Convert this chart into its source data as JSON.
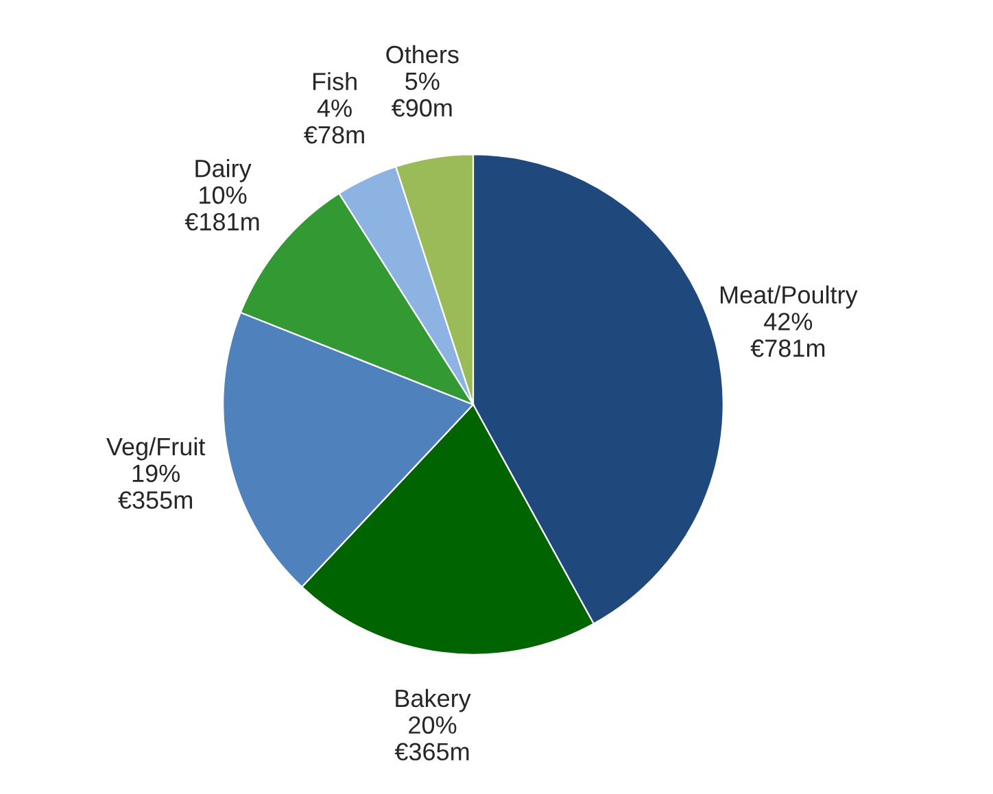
{
  "chart_data": {
    "type": "pie",
    "categories": [
      "Meat/Poultry",
      "Bakery",
      "Veg/Fruit",
      "Dairy",
      "Fish",
      "Others"
    ],
    "values": [
      42,
      20,
      19,
      10,
      4,
      5
    ],
    "value_labels": [
      "42%\n€781m",
      "20%\n€365m",
      "19%\n€355m",
      "10%\n€181m",
      "4%\n€78m",
      "5%\n€90m"
    ],
    "colors": [
      "#1f497d",
      "#006400",
      "#4f81bd",
      "#339933",
      "#8db3e2",
      "#9bbb59"
    ]
  }
}
